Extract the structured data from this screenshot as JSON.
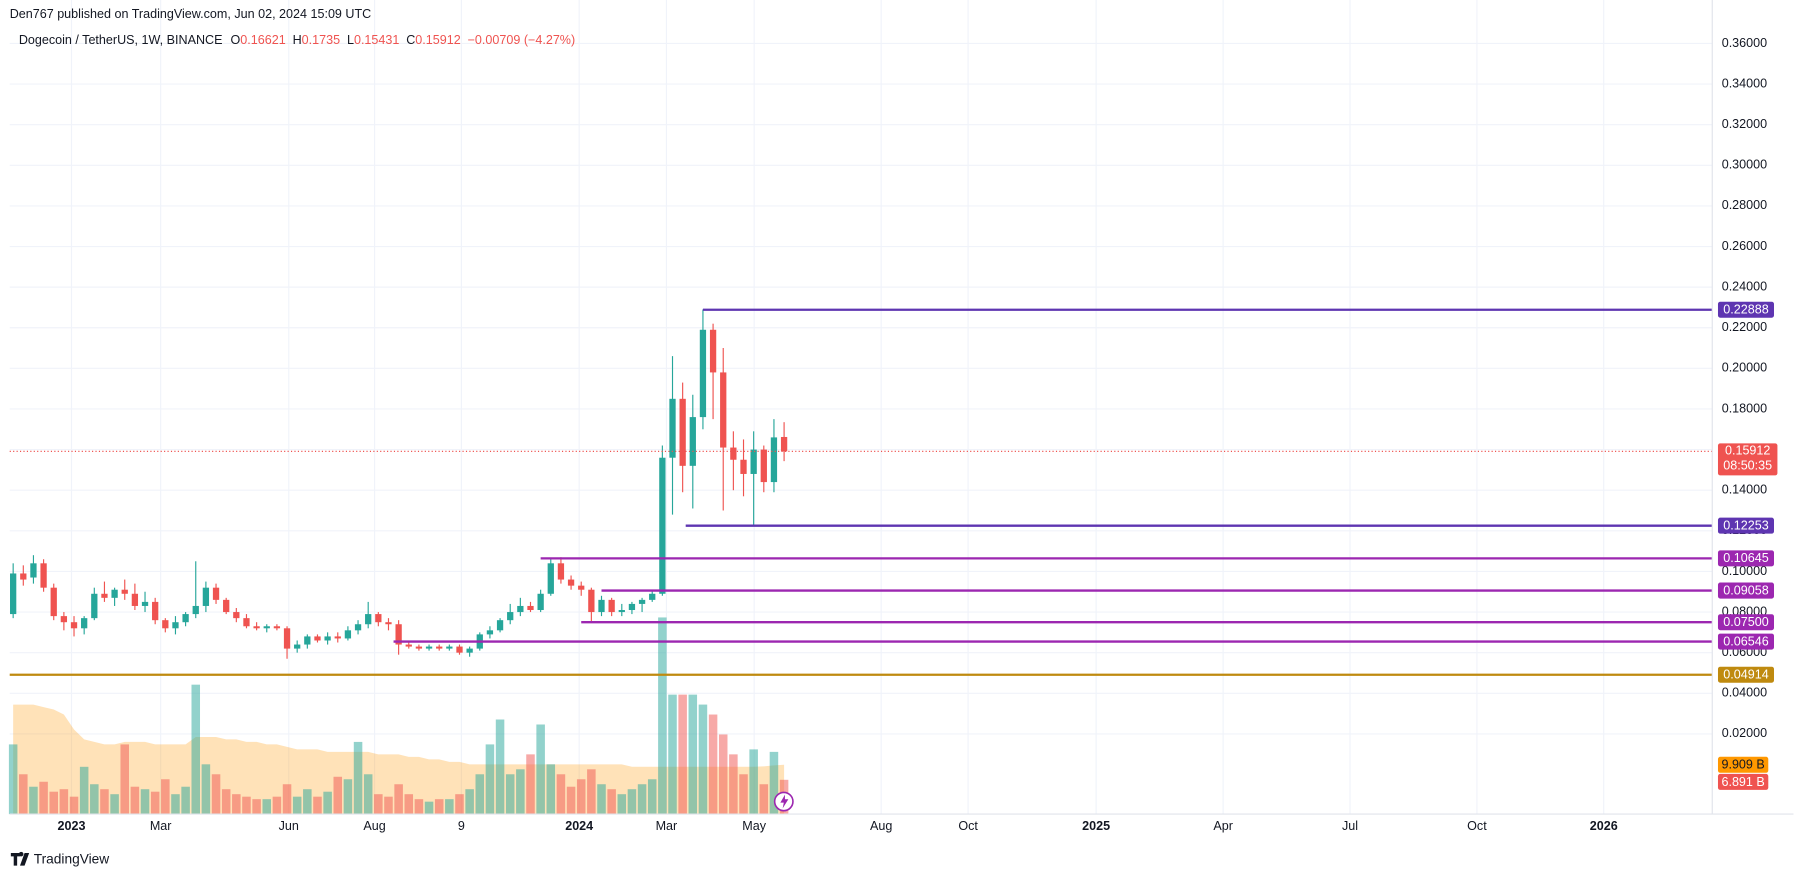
{
  "header": "Den767 published on TradingView.com, Jun 02, 2024 15:09 UTC",
  "brand": "TradingView",
  "chart_data": {
    "type": "candlestick",
    "title": "Dogecoin / TetherUS, 1W, BINANCE",
    "ohlc_labels": [
      "O",
      "H",
      "L",
      "C"
    ],
    "change_label": "−0.00709 (−4.27%)",
    "countdown": "08:50:35",
    "up_color": "#26a69a",
    "down_color": "#ef5350",
    "open": [
      0.079,
      0.099,
      0.097,
      0.104,
      0.092,
      0.078,
      0.075,
      0.072,
      0.077,
      0.089,
      0.087,
      0.091,
      0.089,
      0.083,
      0.085,
      0.076,
      0.072,
      0.075,
      0.079,
      0.083,
      0.092,
      0.086,
      0.08,
      0.077,
      0.073,
      0.072,
      0.073,
      0.072,
      0.062,
      0.064,
      0.068,
      0.066,
      0.068,
      0.067,
      0.071,
      0.074,
      0.079,
      0.075,
      0.074,
      0.064,
      0.063,
      0.062,
      0.063,
      0.062,
      0.063,
      0.06,
      0.062,
      0.069,
      0.071,
      0.076,
      0.08,
      0.083,
      0.081,
      0.089,
      0.104,
      0.096,
      0.093,
      0.091,
      0.08,
      0.086,
      0.08,
      0.081,
      0.084,
      0.086,
      0.089,
      0.156,
      0.185,
      0.152,
      0.176,
      0.219,
      0.198,
      0.161,
      0.155,
      0.148,
      0.16,
      0.144,
      0.16621
    ],
    "high": [
      0.104,
      0.103,
      0.108,
      0.106,
      0.094,
      0.08,
      0.078,
      0.078,
      0.092,
      0.095,
      0.092,
      0.096,
      0.094,
      0.09,
      0.087,
      0.077,
      0.078,
      0.08,
      0.105,
      0.095,
      0.094,
      0.087,
      0.082,
      0.079,
      0.075,
      0.074,
      0.074,
      0.073,
      0.066,
      0.069,
      0.069,
      0.07,
      0.07,
      0.073,
      0.076,
      0.085,
      0.08,
      0.077,
      0.076,
      0.066,
      0.064,
      0.064,
      0.064,
      0.064,
      0.064,
      0.063,
      0.07,
      0.073,
      0.077,
      0.084,
      0.087,
      0.085,
      0.091,
      0.106,
      0.107,
      0.098,
      0.095,
      0.092,
      0.088,
      0.087,
      0.084,
      0.085,
      0.087,
      0.091,
      0.162,
      0.206,
      0.193,
      0.187,
      0.229,
      0.222,
      0.21,
      0.169,
      0.165,
      0.169,
      0.162,
      0.175,
      0.1735
    ],
    "low": [
      0.077,
      0.093,
      0.094,
      0.09,
      0.076,
      0.071,
      0.068,
      0.069,
      0.076,
      0.085,
      0.083,
      0.086,
      0.081,
      0.08,
      0.074,
      0.07,
      0.069,
      0.073,
      0.077,
      0.08,
      0.084,
      0.079,
      0.075,
      0.072,
      0.071,
      0.07,
      0.071,
      0.057,
      0.06,
      0.062,
      0.065,
      0.064,
      0.065,
      0.066,
      0.069,
      0.072,
      0.073,
      0.071,
      0.059,
      0.062,
      0.061,
      0.061,
      0.061,
      0.061,
      0.059,
      0.058,
      0.061,
      0.067,
      0.07,
      0.074,
      0.078,
      0.08,
      0.08,
      0.088,
      0.094,
      0.091,
      0.088,
      0.075,
      0.078,
      0.078,
      0.078,
      0.079,
      0.08,
      0.085,
      0.088,
      0.128,
      0.139,
      0.131,
      0.17,
      0.175,
      0.13,
      0.14,
      0.137,
      0.123,
      0.139,
      0.139,
      0.15431
    ],
    "close": [
      0.099,
      0.096,
      0.104,
      0.092,
      0.078,
      0.075,
      0.072,
      0.077,
      0.089,
      0.087,
      0.091,
      0.089,
      0.083,
      0.085,
      0.076,
      0.072,
      0.075,
      0.079,
      0.083,
      0.092,
      0.086,
      0.08,
      0.077,
      0.073,
      0.072,
      0.073,
      0.072,
      0.062,
      0.064,
      0.068,
      0.066,
      0.068,
      0.067,
      0.071,
      0.074,
      0.079,
      0.075,
      0.074,
      0.064,
      0.063,
      0.062,
      0.063,
      0.062,
      0.063,
      0.06,
      0.062,
      0.069,
      0.071,
      0.076,
      0.08,
      0.083,
      0.081,
      0.089,
      0.104,
      0.096,
      0.093,
      0.091,
      0.08,
      0.086,
      0.08,
      0.081,
      0.084,
      0.086,
      0.089,
      0.156,
      0.185,
      0.152,
      0.176,
      0.219,
      0.198,
      0.161,
      0.155,
      0.148,
      0.16,
      0.144,
      0.166,
      0.15912
    ],
    "volume": [
      14,
      8,
      5.5,
      6.5,
      4.5,
      5,
      3.5,
      9.5,
      6,
      5,
      4,
      14,
      5.5,
      5,
      4.5,
      7,
      4,
      5.5,
      26,
      10,
      8,
      5,
      4,
      3.5,
      3,
      3,
      3.5,
      6,
      3.5,
      5,
      3.5,
      4.5,
      7.5,
      7,
      14.5,
      8,
      4,
      3.5,
      6,
      4,
      3,
      2.5,
      3,
      3,
      4,
      5,
      8,
      14,
      19,
      8,
      9,
      12,
      18,
      10,
      8,
      5.5,
      7,
      9,
      6,
      5,
      4,
      5,
      6,
      7,
      39.5,
      24,
      24,
      24,
      22,
      20,
      16,
      12,
      8,
      13,
      6,
      12.5,
      6.891
    ],
    "volume_ma": [
      22,
      22,
      22,
      21.5,
      21,
      20,
      17,
      15,
      14.5,
      14,
      14,
      14.5,
      14.5,
      14.5,
      14,
      14,
      14,
      14,
      15.5,
      15.5,
      15.5,
      15,
      15,
      14.5,
      14.5,
      14,
      14,
      13.5,
      13,
      13,
      13,
      12.5,
      12.5,
      12.5,
      12.5,
      12.5,
      12,
      12,
      12,
      11.5,
      11.5,
      11,
      11,
      10.5,
      10.5,
      10,
      10,
      10,
      10,
      10,
      10,
      10,
      10,
      10,
      10,
      10,
      10,
      10,
      10,
      10,
      10,
      9.5,
      9.5,
      9.5,
      9.5,
      9.5,
      9.5,
      9.5,
      9.5,
      9.5,
      9.5,
      9.5,
      9.5,
      9.5,
      9.6,
      9.8,
      9.909
    ],
    "volume_last_label": "6.891 B",
    "volume_ma_last_label": "9.909 B",
    "ylim": [
      -0.0195,
      0.369
    ],
    "yticks": [
      {
        "value": 0.36,
        "label": "0.36000"
      },
      {
        "value": 0.34,
        "label": "0.34000"
      },
      {
        "value": 0.32,
        "label": "0.32000"
      },
      {
        "value": 0.3,
        "label": "0.30000"
      },
      {
        "value": 0.28,
        "label": "0.28000"
      },
      {
        "value": 0.26,
        "label": "0.26000"
      },
      {
        "value": 0.24,
        "label": "0.24000"
      },
      {
        "value": 0.22,
        "label": "0.22000"
      },
      {
        "value": 0.2,
        "label": "0.20000"
      },
      {
        "value": 0.18,
        "label": "0.18000"
      },
      {
        "value": 0.16,
        "label": "0.16000"
      },
      {
        "value": 0.14,
        "label": "0.14000"
      },
      {
        "value": 0.12,
        "label": "0.12000"
      },
      {
        "value": 0.1,
        "label": "0.10000"
      },
      {
        "value": 0.08,
        "label": "0.08000"
      },
      {
        "value": 0.06,
        "label": "0.06000"
      },
      {
        "value": 0.04,
        "label": "0.04000"
      },
      {
        "value": 0.02,
        "label": "0.02000"
      }
    ],
    "xlim": [
      -0.34,
      167.5
    ],
    "xticks": [
      {
        "value": 5.75,
        "label": "2023"
      },
      {
        "value": 14.54,
        "label": "Mar"
      },
      {
        "value": 27.17,
        "label": "Jun"
      },
      {
        "value": 35.63,
        "label": "Aug"
      },
      {
        "value": 44.19,
        "label": "9"
      },
      {
        "value": 55.8,
        "label": "2024"
      },
      {
        "value": 64.4,
        "label": "Mar"
      },
      {
        "value": 73.05,
        "label": "May"
      },
      {
        "value": 85.57,
        "label": "Aug"
      },
      {
        "value": 94.14,
        "label": "Oct"
      },
      {
        "value": 106.76,
        "label": "2025"
      },
      {
        "value": 119.28,
        "label": "Apr"
      },
      {
        "value": 131.79,
        "label": "Jul"
      },
      {
        "value": 144.3,
        "label": "Oct"
      },
      {
        "value": 156.8,
        "label": "2026"
      }
    ],
    "levels": [
      {
        "value": 0.22888,
        "label": "0.22888",
        "color": "#5e35b1",
        "start": 68
      },
      {
        "value": 0.12253,
        "label": "0.12253",
        "color": "#5e35b1",
        "start": 66.3
      },
      {
        "value": 0.10645,
        "label": "0.10645",
        "color": "#9c27b0",
        "start": 52
      },
      {
        "value": 0.09058,
        "label": "0.09058",
        "color": "#9c27b0",
        "start": 58
      },
      {
        "value": 0.075,
        "label": "0.07500",
        "color": "#9c27b0",
        "start": 56
      },
      {
        "value": 0.06546,
        "label": "0.06546",
        "color": "#9c27b0",
        "start": 37.5
      },
      {
        "value": 0.04914,
        "label": "0.04914",
        "color": "#bf8a0f"
      }
    ]
  }
}
